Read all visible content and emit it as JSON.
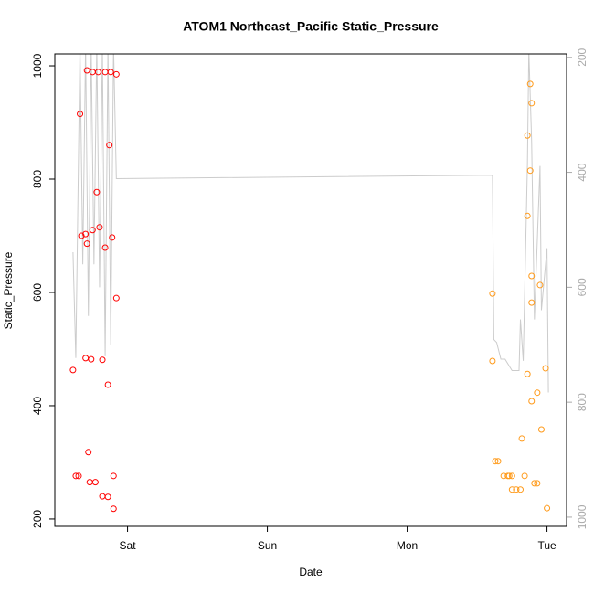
{
  "chart_data": {
    "type": "scatter",
    "title": "ATOM1 Northeast_Pacific Static_Pressure",
    "xlabel": "Date",
    "ylabel": "Static_Pressure",
    "xlim": [
      -0.52,
      3.14
    ],
    "xticks": [
      {
        "value": 0,
        "label": "Sat"
      },
      {
        "value": 1,
        "label": "Sun"
      },
      {
        "value": 2,
        "label": "Mon"
      },
      {
        "value": 3,
        "label": "Tue"
      }
    ],
    "ylim": [
      187,
      1021
    ],
    "yticks": [
      200,
      400,
      600,
      800,
      1000
    ],
    "y2lim": [
      1016,
      194
    ],
    "y2ticks": [
      200,
      400,
      600,
      800,
      1000
    ],
    "y2_reversed": true,
    "series": [
      {
        "color": "#ff0000",
        "marker": "circle",
        "x": [
          -0.39,
          -0.37,
          -0.35,
          -0.34,
          -0.33,
          -0.3,
          -0.3,
          -0.29,
          -0.29,
          -0.28,
          -0.27,
          -0.26,
          -0.25,
          -0.25,
          -0.23,
          -0.22,
          -0.21,
          -0.2,
          -0.18,
          -0.18,
          -0.16,
          -0.16,
          -0.14,
          -0.14,
          -0.13,
          -0.12,
          -0.11,
          -0.1,
          -0.1,
          -0.08,
          -0.08
        ],
        "values": [
          463,
          276,
          276,
          915,
          700,
          703,
          484,
          992,
          686,
          318,
          265,
          482,
          989,
          710,
          265,
          777,
          989,
          715,
          240,
          481,
          989,
          679,
          239,
          437,
          860,
          989,
          697,
          276,
          218,
          985,
          590
        ]
      },
      {
        "color": "#ff9a1a",
        "marker": "circle",
        "x": [
          2.61,
          2.61,
          2.63,
          2.65,
          2.69,
          2.72,
          2.73,
          2.75,
          2.75,
          2.78,
          2.81,
          2.82,
          2.84,
          2.86,
          2.86,
          2.86,
          2.88,
          2.88,
          2.89,
          2.89,
          2.89,
          2.89,
          2.91,
          2.93,
          2.93,
          2.95,
          2.96,
          2.99,
          3.0
        ],
        "values": [
          598,
          479,
          302,
          302,
          276,
          276,
          276,
          276,
          252,
          252,
          252,
          342,
          276,
          735,
          456,
          877,
          815,
          968,
          934,
          582,
          629,
          408,
          263,
          263,
          423,
          613,
          358,
          466,
          219
        ]
      },
      {
        "color": "#cccccc",
        "marker": "line",
        "axis": "y2",
        "x": [
          -0.39,
          -0.37,
          -0.34,
          -0.32,
          -0.3,
          -0.28,
          -0.26,
          -0.24,
          -0.22,
          -0.2,
          -0.18,
          -0.16,
          -0.14,
          -0.12,
          -0.1,
          -0.08,
          2.61,
          2.62,
          2.64,
          2.67,
          2.7,
          2.75,
          2.8,
          2.81,
          2.83,
          2.86,
          2.87,
          2.89,
          2.91,
          2.95,
          2.96,
          3.0,
          3.01
        ],
        "values": [
          539,
          723,
          180,
          560,
          180,
          650,
          180,
          560,
          180,
          600,
          180,
          720,
          180,
          700,
          180,
          411,
          405,
          691,
          696,
          725,
          725,
          745,
          745,
          656,
          728,
          386,
          187,
          346,
          656,
          389,
          640,
          532,
          783
        ]
      }
    ]
  }
}
